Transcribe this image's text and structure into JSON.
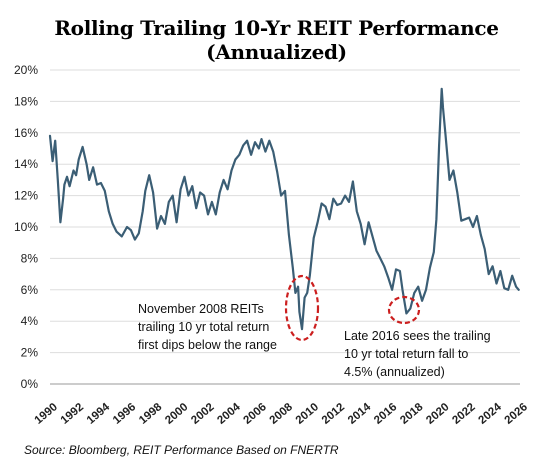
{
  "title": "Rolling Trailing 10-Yr REIT Performance (Annualized)",
  "source": "Source: Bloomberg, REIT Performance Based on FNERTR",
  "colors": {
    "line": "#3b5e75",
    "highlight": "#cc1f1f",
    "grid": "#dddddd"
  },
  "chart_data": {
    "type": "line",
    "title": "Rolling Trailing 10-Yr REIT Performance (Annualized)",
    "xlabel": "",
    "ylabel": "",
    "xlim": [
      1990,
      2026
    ],
    "ylim": [
      0,
      20
    ],
    "grid": "horizontal",
    "y_ticks": [
      "0%",
      "2%",
      "4%",
      "6%",
      "8%",
      "10%",
      "12%",
      "14%",
      "16%",
      "18%",
      "20%"
    ],
    "x_ticks": [
      "1990",
      "1992",
      "1994",
      "1996",
      "1998",
      "2000",
      "2002",
      "2004",
      "2006",
      "2008",
      "2010",
      "2012",
      "2014",
      "2016",
      "2018",
      "2020",
      "2022",
      "2024",
      "2026"
    ],
    "series": [
      {
        "x": [
          1990.0,
          1990.2,
          1990.4,
          1990.6,
          1990.8,
          1991.0,
          1991.1,
          1991.3,
          1991.5,
          1991.8,
          1992.0,
          1992.2,
          1992.5,
          1992.8,
          1993.0,
          1993.3,
          1993.6,
          1993.9,
          1994.2,
          1994.5,
          1994.8,
          1995.1,
          1995.5,
          1995.9,
          1996.2,
          1996.5,
          1996.8,
          1997.1,
          1997.3,
          1997.6,
          1997.9,
          1998.2,
          1998.5,
          1998.8,
          1999.1,
          1999.4,
          1999.7,
          2000.0,
          2000.3,
          2000.6,
          2000.9,
          2001.2,
          2001.5,
          2001.8,
          2002.1,
          2002.4,
          2002.7,
          2003.0,
          2003.3,
          2003.6,
          2003.9,
          2004.2,
          2004.5,
          2004.8,
          2005.1,
          2005.4,
          2005.7,
          2006.0,
          2006.2,
          2006.5,
          2006.8,
          2007.1,
          2007.4,
          2007.7,
          2008.0,
          2008.3,
          2008.6,
          2008.8,
          2009.0,
          2009.1,
          2009.3,
          2009.5,
          2009.7,
          2009.9,
          2010.2,
          2010.5,
          2010.8,
          2011.1,
          2011.4,
          2011.7,
          2012.0,
          2012.3,
          2012.6,
          2012.9,
          2013.2,
          2013.5,
          2013.8,
          2014.1,
          2014.4,
          2014.7,
          2015.0,
          2015.3,
          2015.6,
          2015.9,
          2016.2,
          2016.5,
          2016.8,
          2017.0,
          2017.3,
          2017.6,
          2017.9,
          2018.2,
          2018.5,
          2018.8,
          2019.1,
          2019.4,
          2019.6,
          2019.8,
          2020.0,
          2020.1,
          2020.3,
          2020.6,
          2020.9,
          2021.2,
          2021.5,
          2021.8,
          2022.1,
          2022.4,
          2022.7,
          2023.0,
          2023.3,
          2023.6,
          2023.9,
          2024.2,
          2024.5,
          2024.8,
          2025.1,
          2025.4,
          2025.7,
          2025.9
        ],
        "values": [
          15.8,
          14.2,
          15.5,
          13.0,
          10.3,
          11.8,
          12.7,
          13.2,
          12.6,
          13.6,
          13.3,
          14.3,
          15.1,
          14.0,
          13.0,
          13.8,
          12.7,
          12.8,
          12.3,
          11.0,
          10.2,
          9.7,
          9.4,
          10.0,
          9.8,
          9.2,
          9.6,
          11.0,
          12.3,
          13.3,
          12.2,
          9.9,
          10.7,
          10.2,
          11.6,
          12.0,
          10.3,
          12.4,
          13.2,
          12.0,
          12.6,
          11.2,
          12.2,
          12.0,
          10.8,
          11.6,
          10.8,
          12.2,
          13.0,
          12.4,
          13.6,
          14.3,
          14.6,
          15.2,
          15.5,
          14.6,
          15.4,
          15.0,
          15.6,
          14.8,
          15.5,
          14.8,
          13.5,
          12.0,
          12.3,
          9.5,
          7.4,
          5.8,
          6.2,
          4.6,
          3.5,
          5.5,
          5.8,
          6.9,
          9.3,
          10.3,
          11.5,
          11.3,
          10.5,
          11.8,
          11.4,
          11.5,
          12.0,
          11.6,
          12.9,
          11.0,
          10.2,
          8.9,
          10.3,
          9.4,
          8.5,
          8.0,
          7.5,
          6.8,
          6.0,
          7.3,
          7.2,
          6.0,
          4.5,
          4.8,
          5.8,
          6.2,
          5.3,
          6.0,
          7.4,
          8.4,
          10.5,
          15.2,
          18.8,
          17.6,
          15.8,
          13.0,
          13.6,
          12.2,
          10.4,
          10.5,
          10.6,
          10.0,
          10.7,
          9.5,
          8.6,
          7.0,
          7.5,
          6.4,
          7.2,
          6.1,
          6.0,
          6.9,
          6.2,
          6.0
        ]
      }
    ],
    "annotations": [
      {
        "lines": [
          "November 2008 REITs",
          "trailing 10 yr total return",
          "first dips below the range"
        ]
      },
      {
        "lines": [
          "Late 2016 sees the trailing",
          "10 yr total return fall to",
          "4.5% (annualized)"
        ]
      }
    ]
  }
}
